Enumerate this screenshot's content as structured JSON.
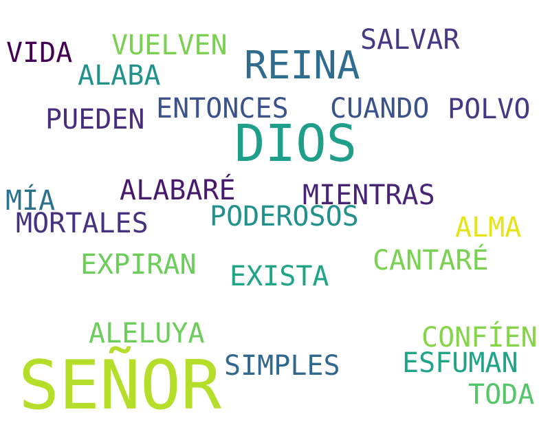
{
  "words": [
    {
      "text": "SEÑOR",
      "color": "#b5de2b"
    },
    {
      "text": "DIOS",
      "color": "#1f9e89"
    },
    {
      "text": "REINA",
      "color": "#2f6c8e"
    },
    {
      "text": "VUELVEN",
      "color": "#7ad151"
    },
    {
      "text": "SALVAR",
      "color": "#443983"
    },
    {
      "text": "VIDA",
      "color": "#440154"
    },
    {
      "text": "ALABA",
      "color": "#21918c"
    },
    {
      "text": "ENTONCES",
      "color": "#3b528b"
    },
    {
      "text": "CUANDO",
      "color": "#3b528b"
    },
    {
      "text": "POLVO",
      "color": "#443983"
    },
    {
      "text": "PUEDEN",
      "color": "#472d7b"
    },
    {
      "text": "ALABARÉ",
      "color": "#481a6c"
    },
    {
      "text": "MIENTRAS",
      "color": "#482475"
    },
    {
      "text": "MÍA",
      "color": "#2c728e"
    },
    {
      "text": "PODEROSOS",
      "color": "#21918c"
    },
    {
      "text": "MORTALES",
      "color": "#46327e"
    },
    {
      "text": "ALMA",
      "color": "#e5e419"
    },
    {
      "text": "CANTARÉ",
      "color": "#7ad151"
    },
    {
      "text": "EXPIRAN",
      "color": "#6ccd5a"
    },
    {
      "text": "EXISTA",
      "color": "#20a486"
    },
    {
      "text": "ALELUYA",
      "color": "#6ccd5a"
    },
    {
      "text": "CONFÍEN",
      "color": "#86d549"
    },
    {
      "text": "SIMPLES",
      "color": "#31688e"
    },
    {
      "text": "ESFUMAN",
      "color": "#20a486"
    },
    {
      "text": "TODA",
      "color": "#54c568"
    }
  ]
}
